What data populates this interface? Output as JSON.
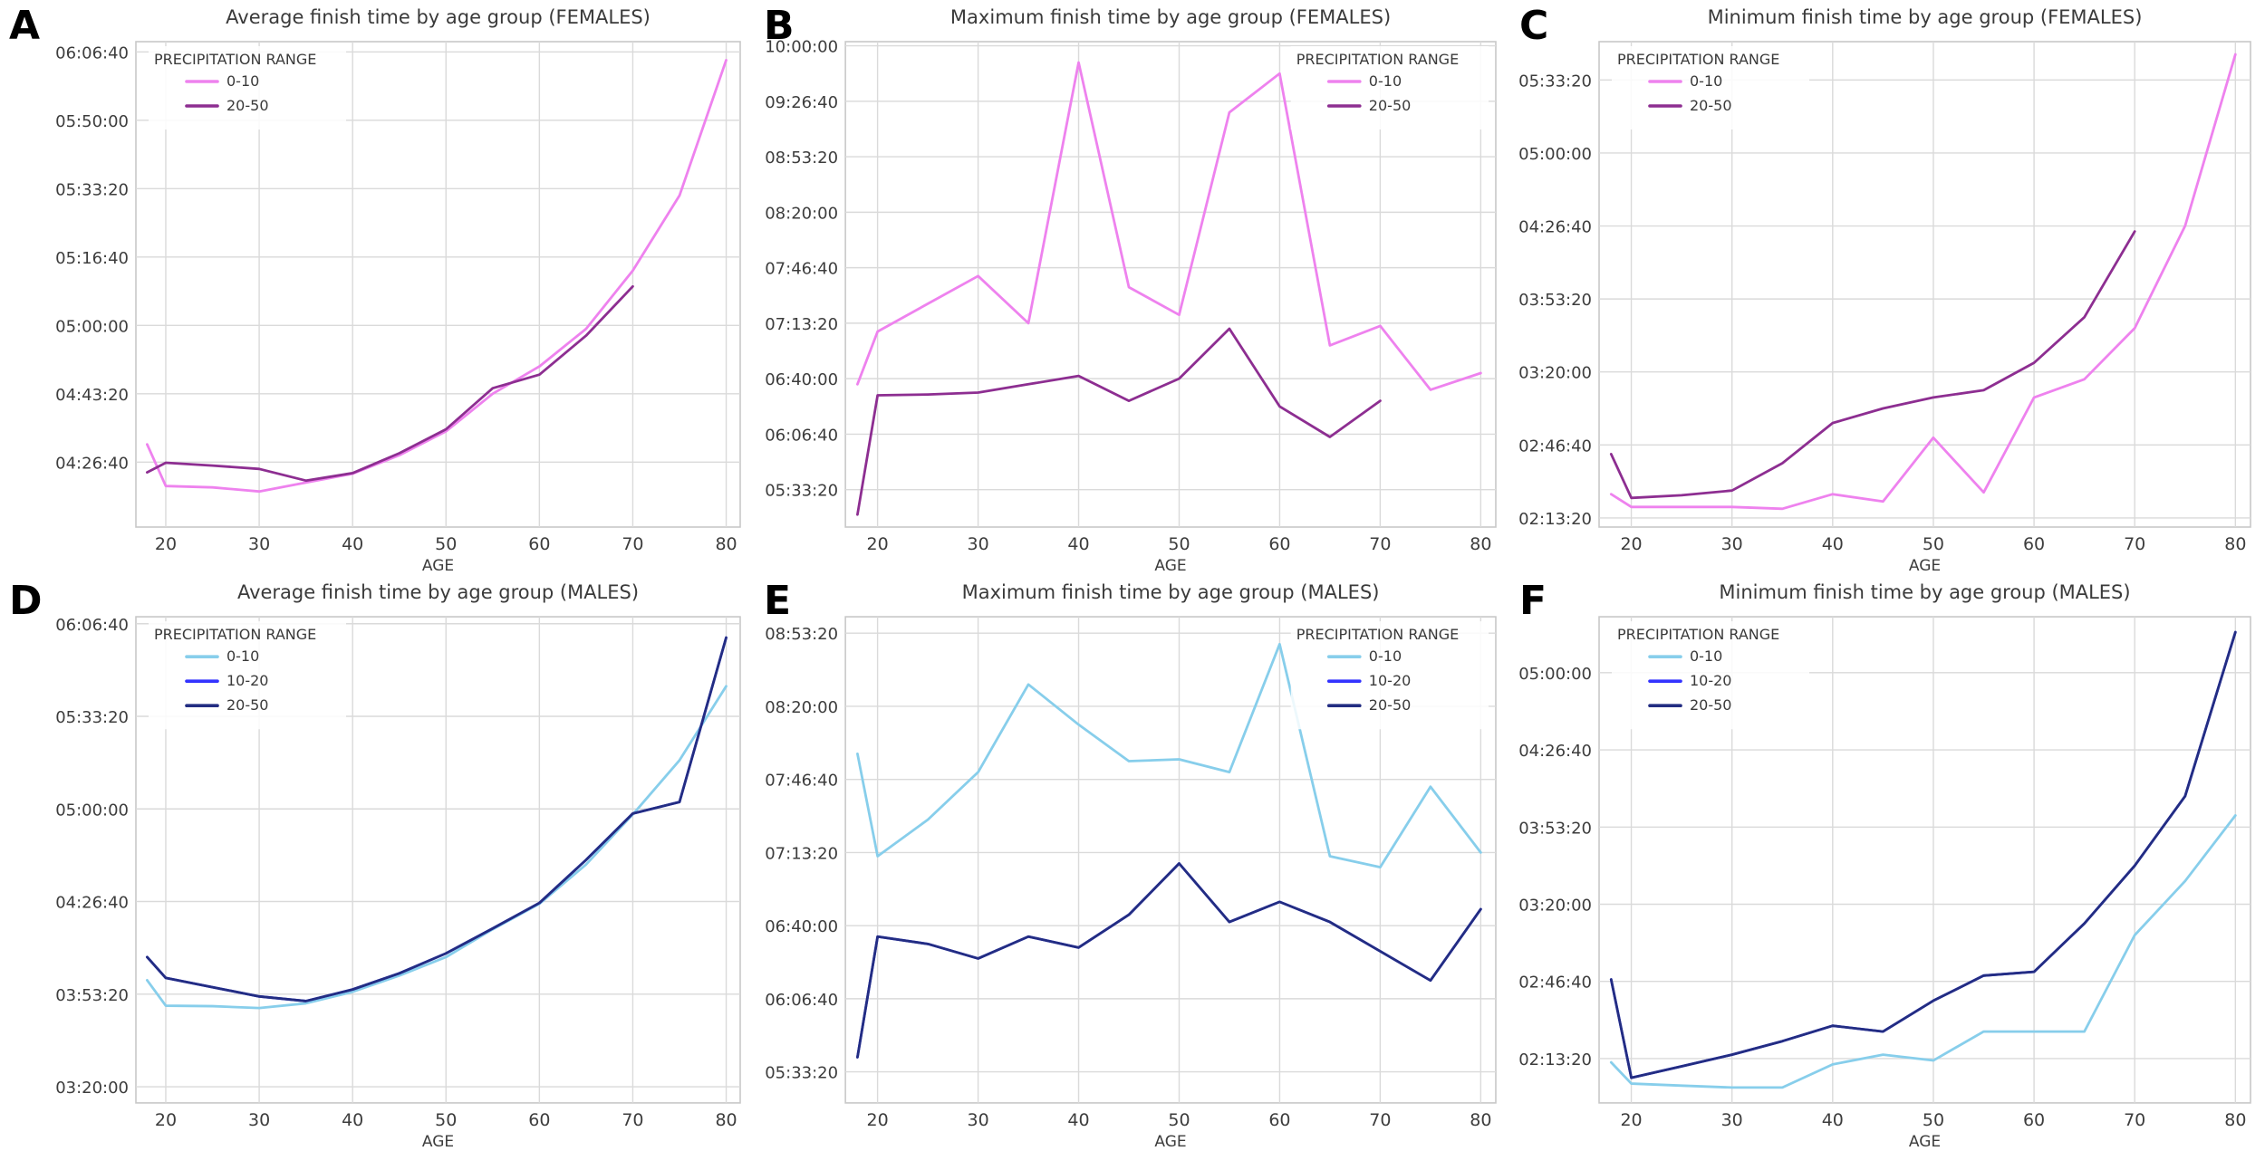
{
  "page": {
    "background": "#ffffff",
    "grid_color": "#dadada",
    "frame_color": "#c8c8c8",
    "text_color": "#3d3d3d"
  },
  "chart_data": [
    {
      "id": "A",
      "type": "line",
      "title": "Average finish time by age group (FEMALES)",
      "xlabel": "AGE",
      "ylabel": "",
      "x_ticks": [
        20,
        30,
        40,
        50,
        60,
        70,
        80
      ],
      "xlim": [
        16.8,
        81.5
      ],
      "y_ticks": [
        "06:06:40",
        "05:50:00",
        "05:33:20",
        "05:16:40",
        "05:00:00",
        "04:43:20",
        "04:26:40"
      ],
      "ylim_seconds": [
        15050,
        22150
      ],
      "grid": true,
      "legend": {
        "title": "PRECIPITATION RANGE",
        "position": "upper-left"
      },
      "series": [
        {
          "name": "0-10",
          "color": "#EE82EE",
          "x": [
            18,
            20,
            25,
            30,
            35,
            40,
            45,
            50,
            55,
            60,
            65,
            70,
            75,
            80
          ],
          "times": [
            "04:31:00",
            "04:20:50",
            "04:20:30",
            "04:19:30",
            "04:21:40",
            "04:23:50",
            "04:28:20",
            "04:34:10",
            "04:43:20",
            "04:50:00",
            "04:59:10",
            "05:13:20",
            "05:31:40",
            "06:04:40"
          ]
        },
        {
          "name": "20-50",
          "color": "#8D2E91",
          "x": [
            18,
            20,
            25,
            30,
            35,
            40,
            45,
            50,
            55,
            60,
            65,
            70
          ],
          "times": [
            "04:24:10",
            "04:26:30",
            "04:25:50",
            "04:25:00",
            "04:22:10",
            "04:24:00",
            "04:28:50",
            "04:34:40",
            "04:44:40",
            "04:48:00",
            "04:57:30",
            "05:09:30"
          ]
        }
      ]
    },
    {
      "id": "B",
      "type": "line",
      "title": "Maximum finish time by age group (FEMALES)",
      "xlabel": "AGE",
      "ylabel": "",
      "x_ticks": [
        20,
        30,
        40,
        50,
        60,
        70,
        80
      ],
      "xlim": [
        16.8,
        81.5
      ],
      "y_ticks": [
        "10:00:00",
        "09:26:40",
        "08:53:20",
        "08:20:00",
        "07:46:40",
        "07:13:20",
        "06:40:00",
        "06:06:40",
        "05:33:20"
      ],
      "ylim_seconds": [
        18650,
        36150
      ],
      "grid": true,
      "legend": {
        "title": "PRECIPITATION RANGE",
        "position": "upper-right"
      },
      "series": [
        {
          "name": "0-10",
          "color": "#EE82EE",
          "x": [
            18,
            20,
            25,
            30,
            35,
            40,
            45,
            50,
            55,
            60,
            65,
            70,
            75,
            80
          ],
          "times": [
            "06:36:40",
            "07:08:20",
            "07:25:00",
            "07:41:40",
            "07:13:20",
            "09:50:00",
            "07:35:00",
            "07:18:20",
            "09:20:00",
            "09:43:20",
            "07:00:00",
            "07:11:40",
            "06:33:20",
            "06:43:20"
          ]
        },
        {
          "name": "20-50",
          "color": "#8D2E91",
          "x": [
            18,
            20,
            25,
            30,
            35,
            40,
            45,
            50,
            55,
            60,
            65,
            70
          ],
          "times": [
            "05:18:20",
            "06:30:00",
            "06:30:30",
            "06:31:40",
            "06:36:40",
            "06:41:40",
            "06:26:40",
            "06:40:00",
            "07:10:00",
            "06:23:20",
            "06:05:00",
            "06:26:40"
          ]
        }
      ]
    },
    {
      "id": "C",
      "type": "line",
      "title": "Minimum finish time by age group (FEMALES)",
      "xlabel": "AGE",
      "ylabel": "",
      "x_ticks": [
        20,
        30,
        40,
        50,
        60,
        70,
        80
      ],
      "xlim": [
        16.8,
        81.5
      ],
      "y_ticks": [
        "05:33:20",
        "05:00:00",
        "04:26:40",
        "03:53:20",
        "03:20:00",
        "02:46:40",
        "02:13:20"
      ],
      "ylim_seconds": [
        7750,
        21050
      ],
      "grid": true,
      "legend": {
        "title": "PRECIPITATION RANGE",
        "position": "upper-left"
      },
      "series": [
        {
          "name": "0-10",
          "color": "#EE82EE",
          "x": [
            18,
            20,
            25,
            30,
            35,
            40,
            45,
            50,
            55,
            60,
            65,
            70,
            75,
            80
          ],
          "times": [
            "02:24:10",
            "02:18:20",
            "02:18:20",
            "02:18:20",
            "02:17:30",
            "02:24:10",
            "02:20:50",
            "02:50:00",
            "02:25:00",
            "03:08:20",
            "03:16:40",
            "03:40:00",
            "04:26:40",
            "05:45:00"
          ]
        },
        {
          "name": "20-50",
          "color": "#8D2E91",
          "x": [
            18,
            20,
            25,
            30,
            35,
            40,
            45,
            50,
            55,
            60,
            65,
            70
          ],
          "times": [
            "02:42:30",
            "02:22:30",
            "02:23:40",
            "02:25:50",
            "02:38:20",
            "02:56:40",
            "03:03:20",
            "03:08:20",
            "03:11:40",
            "03:24:10",
            "03:45:00",
            "04:24:10"
          ]
        }
      ]
    },
    {
      "id": "D",
      "type": "line",
      "title": "Average finish time by age group (MALES)",
      "xlabel": "AGE",
      "ylabel": "",
      "x_ticks": [
        20,
        30,
        40,
        50,
        60,
        70,
        80
      ],
      "xlim": [
        16.8,
        81.5
      ],
      "y_ticks": [
        "06:06:40",
        "05:33:20",
        "05:00:00",
        "04:26:40",
        "03:53:20",
        "03:20:00"
      ],
      "ylim_seconds": [
        11650,
        22150
      ],
      "grid": true,
      "legend": {
        "title": "PRECIPITATION RANGE",
        "position": "upper-left"
      },
      "series": [
        {
          "name": "0-10",
          "color": "#87CEEB",
          "x": [
            18,
            20,
            25,
            30,
            35,
            40,
            45,
            50,
            55,
            60,
            65,
            70,
            75,
            80
          ],
          "times": [
            "03:58:20",
            "03:49:10",
            "03:49:00",
            "03:48:20",
            "03:50:00",
            "03:54:10",
            "04:00:00",
            "04:06:40",
            "04:16:40",
            "04:25:50",
            "04:40:00",
            "04:58:00",
            "05:17:30",
            "05:44:10"
          ]
        },
        {
          "name": "10-20",
          "color": "#3333FF",
          "x": [
            18,
            20,
            25,
            30,
            35,
            40,
            45,
            50,
            55,
            60,
            65,
            70,
            75,
            80
          ],
          "times": [
            "04:06:40",
            "03:59:10",
            "03:55:50",
            "03:52:30",
            "03:50:50",
            "03:55:00",
            "04:00:50",
            "04:08:00",
            "04:17:00",
            "04:26:10",
            "04:41:40",
            "04:58:20",
            "05:02:30",
            "06:01:40"
          ]
        },
        {
          "name": "20-50",
          "color": "#232D82",
          "x": [
            18,
            20,
            25,
            30,
            35,
            40,
            45,
            50,
            55,
            60,
            65,
            70,
            75,
            80
          ],
          "times": [
            "04:06:40",
            "03:59:10",
            "03:55:50",
            "03:52:30",
            "03:50:50",
            "03:55:00",
            "04:00:50",
            "04:08:00",
            "04:17:00",
            "04:26:10",
            "04:41:40",
            "04:58:20",
            "05:02:30",
            "06:01:40"
          ]
        }
      ]
    },
    {
      "id": "E",
      "type": "line",
      "title": "Maximum finish time by age group (MALES)",
      "xlabel": "AGE",
      "ylabel": "",
      "x_ticks": [
        20,
        30,
        40,
        50,
        60,
        70,
        80
      ],
      "xlim": [
        16.8,
        81.5
      ],
      "y_ticks": [
        "08:53:20",
        "08:20:00",
        "07:46:40",
        "07:13:20",
        "06:40:00",
        "06:06:40",
        "05:33:20"
      ],
      "ylim_seconds": [
        19150,
        32450
      ],
      "grid": true,
      "legend": {
        "title": "PRECIPITATION RANGE",
        "position": "upper-right"
      },
      "series": [
        {
          "name": "0-10",
          "color": "#87CEEB",
          "x": [
            18,
            20,
            25,
            30,
            35,
            40,
            45,
            50,
            55,
            60,
            65,
            70,
            75,
            80
          ],
          "times": [
            "07:58:20",
            "07:11:40",
            "07:28:20",
            "07:50:00",
            "08:30:00",
            "08:11:40",
            "07:55:00",
            "07:55:50",
            "07:50:00",
            "08:48:20",
            "07:11:40",
            "07:06:40",
            "07:43:20",
            "07:13:20"
          ]
        },
        {
          "name": "10-20",
          "color": "#3333FF",
          "x": [
            18,
            20,
            25,
            30,
            35,
            40,
            45,
            50,
            55,
            60,
            65,
            70,
            75,
            80
          ],
          "times": [
            "05:40:00",
            "06:35:00",
            "06:31:40",
            "06:25:00",
            "06:35:00",
            "06:30:00",
            "06:45:00",
            "07:08:20",
            "06:41:40",
            "06:50:50",
            "06:41:40",
            "06:28:20",
            "06:15:00",
            "06:47:30"
          ]
        },
        {
          "name": "20-50",
          "color": "#232D82",
          "x": [
            18,
            20,
            25,
            30,
            35,
            40,
            45,
            50,
            55,
            60,
            65,
            70,
            75,
            80
          ],
          "times": [
            "05:40:00",
            "06:35:00",
            "06:31:40",
            "06:25:00",
            "06:35:00",
            "06:30:00",
            "06:45:00",
            "07:08:20",
            "06:41:40",
            "06:50:50",
            "06:41:40",
            "06:28:20",
            "06:15:00",
            "06:47:30"
          ]
        }
      ]
    },
    {
      "id": "F",
      "type": "line",
      "title": "Minimum finish time by age group (MALES)",
      "xlabel": "AGE",
      "ylabel": "",
      "x_ticks": [
        20,
        30,
        40,
        50,
        60,
        70,
        80
      ],
      "xlim": [
        16.8,
        81.5
      ],
      "y_ticks": [
        "05:00:00",
        "04:26:40",
        "03:53:20",
        "03:20:00",
        "02:46:40",
        "02:13:20"
      ],
      "ylim_seconds": [
        6850,
        19450
      ],
      "grid": true,
      "legend": {
        "title": "PRECIPITATION RANGE",
        "position": "upper-left"
      },
      "series": [
        {
          "name": "0-10",
          "color": "#87CEEB",
          "x": [
            18,
            20,
            25,
            30,
            35,
            40,
            45,
            50,
            55,
            60,
            65,
            70,
            75,
            80
          ],
          "times": [
            "02:11:40",
            "02:02:30",
            "02:01:40",
            "02:00:50",
            "02:00:50",
            "02:10:50",
            "02:15:00",
            "02:12:30",
            "02:25:00",
            "02:25:00",
            "02:25:00",
            "03:06:40",
            "03:30:00",
            "03:58:20"
          ]
        },
        {
          "name": "10-20",
          "color": "#3333FF",
          "x": [
            18,
            20,
            25,
            30,
            35,
            40,
            45,
            50,
            55,
            60,
            65,
            70,
            75,
            80
          ],
          "times": [
            "02:47:30",
            "02:05:00",
            "02:10:00",
            "02:15:00",
            "02:20:50",
            "02:27:30",
            "02:25:00",
            "02:38:20",
            "02:49:10",
            "02:50:50",
            "03:11:40",
            "03:36:40",
            "04:06:40",
            "05:17:30"
          ]
        },
        {
          "name": "20-50",
          "color": "#232D82",
          "x": [
            18,
            20,
            25,
            30,
            35,
            40,
            45,
            50,
            55,
            60,
            65,
            70,
            75,
            80
          ],
          "times": [
            "02:47:30",
            "02:05:00",
            "02:10:00",
            "02:15:00",
            "02:20:50",
            "02:27:30",
            "02:25:00",
            "02:38:20",
            "02:49:10",
            "02:50:50",
            "03:11:40",
            "03:36:40",
            "04:06:40",
            "05:17:30"
          ]
        }
      ]
    }
  ]
}
